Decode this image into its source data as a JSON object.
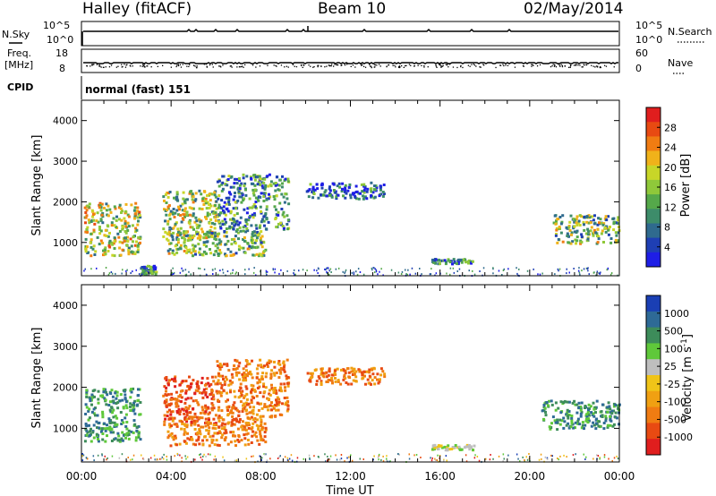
{
  "header": {
    "station": "Halley (fitACF)",
    "beam": "Beam 10",
    "date": "02/May/2014"
  },
  "strip_labels": {
    "nsky": "N.Sky",
    "nsearch": "N.Search",
    "freq_line1": "Freq.",
    "freq_line2": "[MHz]",
    "nave": "Nave",
    "cpid": "CPID",
    "cpid_value": "normal (fast) 151",
    "noise_top": "10^5",
    "noise_bottom": "10^0",
    "freq_top": "18",
    "freq_bottom": "8",
    "nave_top": "60",
    "nave_bottom": "0"
  },
  "axes": {
    "xlabel": "Time UT",
    "ylabel": "Slant Range [km]",
    "xticks": [
      "00:00",
      "04:00",
      "08:00",
      "12:00",
      "16:00",
      "20:00",
      "00:00"
    ],
    "yticks": [
      "1000",
      "2000",
      "3000",
      "4000"
    ]
  },
  "chart_data": [
    {
      "type": "heatmap",
      "title": "",
      "xlabel": "",
      "ylabel": "Slant Range [km]",
      "x_range_hours": [
        0,
        24
      ],
      "y_range_km": [
        180,
        4500
      ],
      "colorbar": {
        "label": "Power [dB]",
        "ticks": [
          "4",
          "8",
          "12",
          "16",
          "20",
          "24",
          "28"
        ],
        "colors": [
          "#1e1ee6",
          "#1e3fb4",
          "#2f6a8e",
          "#3d8c6a",
          "#55a84a",
          "#8fc83a",
          "#c8d628",
          "#f0b21a",
          "#f07c12",
          "#e84a12",
          "#e01e1e"
        ]
      },
      "echo_regions": [
        {
          "t": [
            0.1,
            2.6
          ],
          "r": [
            700,
            2000
          ],
          "level": 0.55
        },
        {
          "t": [
            2.6,
            3.3
          ],
          "r": [
            250,
            450
          ],
          "level": 0.3
        },
        {
          "t": [
            3.6,
            6.0
          ],
          "r": [
            1100,
            2300
          ],
          "level": 0.5
        },
        {
          "t": [
            3.8,
            8.2
          ],
          "r": [
            700,
            1300
          ],
          "level": 0.45
        },
        {
          "t": [
            6.0,
            9.2
          ],
          "r": [
            1300,
            2700
          ],
          "level": 0.3
        },
        {
          "t": [
            10.0,
            13.5
          ],
          "r": [
            2100,
            2500
          ],
          "level": 0.2
        },
        {
          "t": [
            15.6,
            17.5
          ],
          "r": [
            500,
            620
          ],
          "level": 0.25
        },
        {
          "t": [
            21.0,
            24.0
          ],
          "r": [
            1000,
            1700
          ],
          "level": 0.45
        }
      ]
    },
    {
      "type": "heatmap",
      "title": "",
      "xlabel": "Time UT",
      "ylabel": "Slant Range [km]",
      "x_range_hours": [
        0,
        24
      ],
      "y_range_km": [
        180,
        4500
      ],
      "colorbar": {
        "label": "Velocity [m s^-1]",
        "ticks": [
          "1000",
          "500",
          "100",
          "25",
          "-25",
          "-100",
          "-500",
          "-1000"
        ],
        "colors": [
          "#1a3fb4",
          "#2e6a96",
          "#3d8c5a",
          "#5fc83a",
          "#bebebe",
          "#f0c418",
          "#f0a012",
          "#f07c12",
          "#e84a12",
          "#e01e1e"
        ]
      },
      "echo_regions": [
        {
          "t": [
            0.1,
            2.6
          ],
          "r": [
            700,
            2000
          ],
          "vel": 100
        },
        {
          "t": [
            3.6,
            6.0
          ],
          "r": [
            1100,
            2300
          ],
          "vel": -500
        },
        {
          "t": [
            3.8,
            8.2
          ],
          "r": [
            600,
            1300
          ],
          "vel": -100
        },
        {
          "t": [
            6.0,
            9.2
          ],
          "r": [
            1300,
            2700
          ],
          "vel": -100
        },
        {
          "t": [
            10.0,
            13.5
          ],
          "r": [
            2100,
            2500
          ],
          "vel": -100
        },
        {
          "t": [
            15.6,
            17.5
          ],
          "r": [
            500,
            620
          ],
          "vel": 0
        },
        {
          "t": [
            20.5,
            24.0
          ],
          "r": [
            1000,
            1700
          ],
          "vel": 100
        }
      ]
    }
  ]
}
